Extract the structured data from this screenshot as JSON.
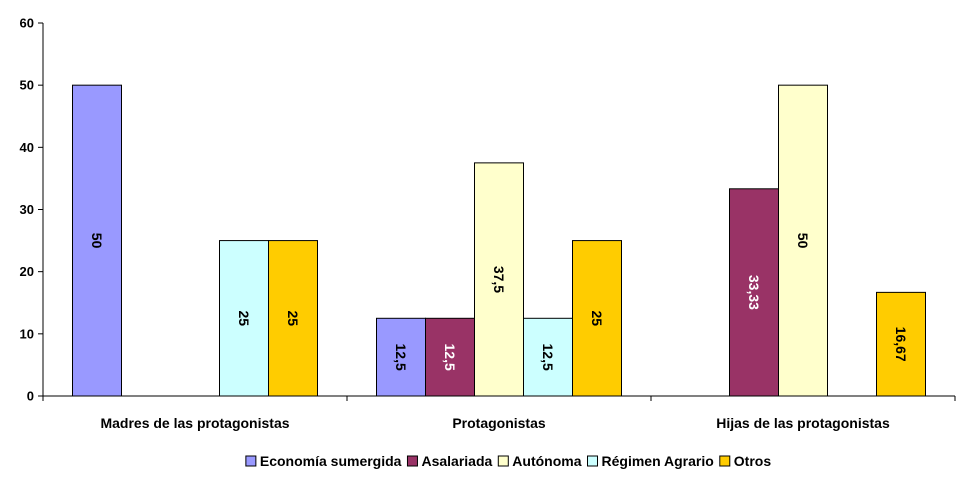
{
  "chart_data": {
    "type": "bar",
    "title": "",
    "xlabel": "",
    "ylabel": "",
    "ylim": [
      0,
      60
    ],
    "ytick_step": 10,
    "yticks": [
      "0",
      "10",
      "20",
      "30",
      "40",
      "50",
      "60"
    ],
    "grid": false,
    "legend_position": "bottom",
    "categories": [
      "Madres de las protagonistas",
      "Protagonistas",
      "Hijas de las protagonistas"
    ],
    "series": [
      {
        "name": "Economía sumergida",
        "color": "#9999ff",
        "label_color": "#000000",
        "values": [
          50,
          12.5,
          null
        ],
        "labels": [
          "50",
          "12,5",
          ""
        ]
      },
      {
        "name": "Asalariada",
        "color": "#993366",
        "label_color": "#ffffff",
        "values": [
          null,
          12.5,
          33.33
        ],
        "labels": [
          "",
          "12,5",
          "33,33"
        ]
      },
      {
        "name": "Autónoma",
        "color": "#ffffcc",
        "label_color": "#000000",
        "values": [
          null,
          37.5,
          50
        ],
        "labels": [
          "",
          "37,5",
          "50"
        ]
      },
      {
        "name": "Régimen Agrario",
        "color": "#ccffff",
        "label_color": "#000000",
        "values": [
          25,
          12.5,
          null
        ],
        "labels": [
          "25",
          "12,5",
          ""
        ]
      },
      {
        "name": "Otros",
        "color": "#ffcc00",
        "label_color": "#000000",
        "values": [
          25,
          25,
          16.67
        ],
        "labels": [
          "25",
          "25",
          "16,67"
        ]
      }
    ]
  }
}
